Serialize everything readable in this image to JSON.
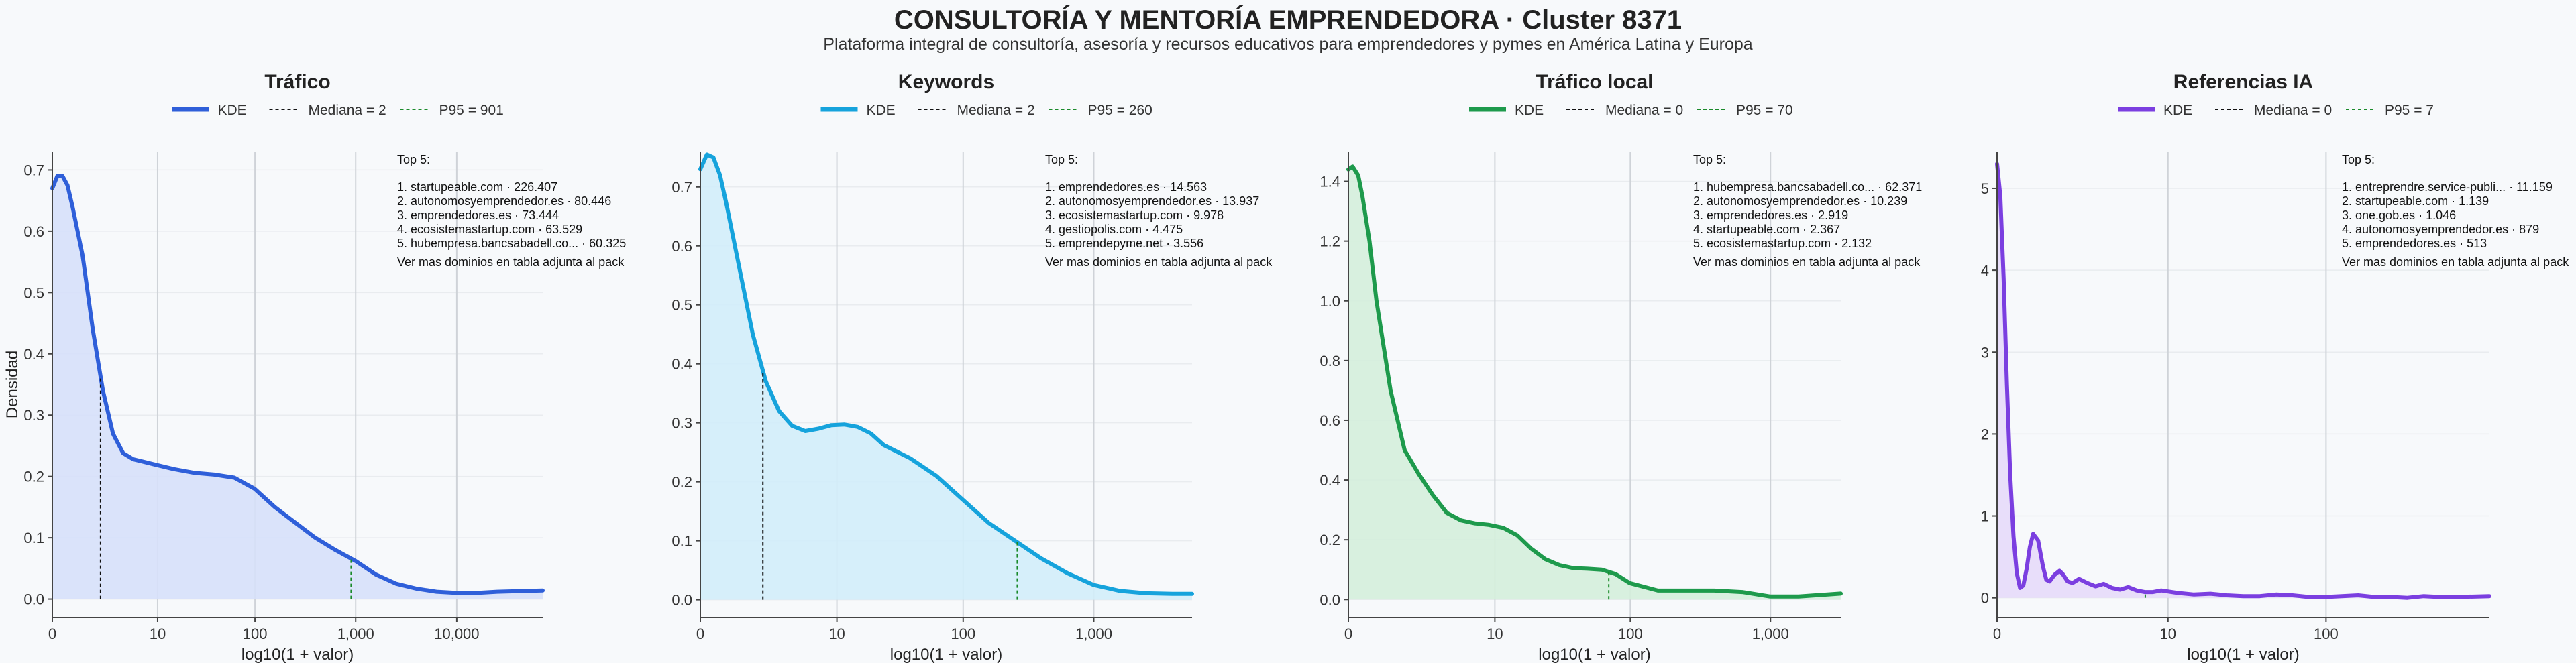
{
  "header": {
    "title": "CONSULTORÍA Y MENTORÍA EMPRENDEDORA · Cluster 8371",
    "subtitle": "Plataforma integral de consultoría, asesoría y recursos educativos para emprendedores y pymes en América Latina y Europa"
  },
  "chart_data": [
    {
      "type": "area",
      "title": "Tráfico",
      "color": "#2f5fd9",
      "fill": "#d6e0fa",
      "xlabel": "log10(1 + valor)",
      "ylabel": "Densidad",
      "x_scale": "log1p",
      "xlim": [
        0,
        4.85
      ],
      "ylim": [
        -0.03,
        0.73
      ],
      "xticks": [
        {
          "v": 0,
          "label": "0"
        },
        {
          "v": 10,
          "label": "10"
        },
        {
          "v": 100,
          "label": "100"
        },
        {
          "v": 1000,
          "label": "1,000"
        },
        {
          "v": 10000,
          "label": "10,000"
        }
      ],
      "yticks": [
        "0.0",
        "0.1",
        "0.2",
        "0.3",
        "0.4",
        "0.5",
        "0.6",
        "0.7"
      ],
      "ytick_values": [
        0,
        0.1,
        0.2,
        0.3,
        0.4,
        0.5,
        0.6,
        0.7
      ],
      "legend": {
        "kde": "KDE",
        "median": "Mediana = 2",
        "p95": "P95 = 901"
      },
      "median_x": 0.477,
      "p95_x": 2.955,
      "series": {
        "x": [
          0,
          0.05,
          0.1,
          0.15,
          0.2,
          0.3,
          0.4,
          0.5,
          0.6,
          0.7,
          0.8,
          0.9,
          1.0,
          1.2,
          1.4,
          1.6,
          1.8,
          2.0,
          2.2,
          2.4,
          2.6,
          2.8,
          3.0,
          3.2,
          3.4,
          3.6,
          3.8,
          4.0,
          4.2,
          4.4,
          4.6,
          4.85
        ],
        "y": [
          0.67,
          0.69,
          0.69,
          0.675,
          0.64,
          0.56,
          0.44,
          0.34,
          0.27,
          0.238,
          0.228,
          0.224,
          0.22,
          0.212,
          0.206,
          0.203,
          0.198,
          0.18,
          0.15,
          0.125,
          0.1,
          0.08,
          0.062,
          0.04,
          0.025,
          0.017,
          0.012,
          0.01,
          0.01,
          0.012,
          0.013,
          0.014
        ]
      },
      "annotation": {
        "heading": "Top 5:",
        "items": [
          "1. startupeable.com · 226.407",
          "2. autonomosyemprendedor.es · 80.446",
          "3. emprendedores.es · 73.444",
          "4. ecosistemastartup.com · 63.529",
          "5. hubempresa.bancsabadell.co... · 60.325"
        ],
        "footer": "Ver mas dominios en tabla adjunta al pack"
      }
    },
    {
      "type": "area",
      "title": "Keywords",
      "color": "#16a3dc",
      "fill": "#d2edf9",
      "xlabel": "log10(1 + valor)",
      "ylabel": "",
      "x_scale": "log1p",
      "xlim": [
        0,
        3.75
      ],
      "ylim": [
        -0.03,
        0.76
      ],
      "xticks": [
        {
          "v": 0,
          "label": "0"
        },
        {
          "v": 10,
          "label": "10"
        },
        {
          "v": 100,
          "label": "100"
        },
        {
          "v": 1000,
          "label": "1,000"
        }
      ],
      "yticks": [
        "0.0",
        "0.1",
        "0.2",
        "0.3",
        "0.4",
        "0.5",
        "0.6",
        "0.7"
      ],
      "ytick_values": [
        0,
        0.1,
        0.2,
        0.3,
        0.4,
        0.5,
        0.6,
        0.7
      ],
      "legend": {
        "kde": "KDE",
        "median": "Mediana = 2",
        "p95": "P95 = 260"
      },
      "median_x": 0.477,
      "p95_x": 2.417,
      "series": {
        "x": [
          0,
          0.05,
          0.1,
          0.15,
          0.2,
          0.3,
          0.4,
          0.5,
          0.6,
          0.7,
          0.8,
          0.9,
          1.0,
          1.1,
          1.2,
          1.3,
          1.4,
          1.6,
          1.8,
          2.0,
          2.2,
          2.4,
          2.6,
          2.8,
          3.0,
          3.2,
          3.4,
          3.6,
          3.75
        ],
        "y": [
          0.73,
          0.755,
          0.75,
          0.72,
          0.67,
          0.56,
          0.45,
          0.37,
          0.32,
          0.295,
          0.286,
          0.29,
          0.296,
          0.297,
          0.293,
          0.282,
          0.262,
          0.24,
          0.21,
          0.17,
          0.13,
          0.1,
          0.07,
          0.045,
          0.025,
          0.015,
          0.011,
          0.01,
          0.01
        ]
      },
      "annotation": {
        "heading": "Top 5:",
        "items": [
          "1. emprendedores.es · 14.563",
          "2. autonomosyemprendedor.es · 13.937",
          "3. ecosistemastartup.com · 9.978",
          "4. gestiopolis.com · 4.475",
          "5. emprendepyme.net · 3.556"
        ],
        "footer": "Ver mas dominios en tabla adjunta al pack"
      }
    },
    {
      "type": "area",
      "title": "Tráfico local",
      "color": "#1e9a4c",
      "fill": "#d4eedb",
      "xlabel": "log10(1 + valor)",
      "ylabel": "",
      "x_scale": "log1p",
      "xlim": [
        0,
        3.5
      ],
      "ylim": [
        -0.06,
        1.5
      ],
      "xticks": [
        {
          "v": 0,
          "label": "0"
        },
        {
          "v": 10,
          "label": "10"
        },
        {
          "v": 100,
          "label": "100"
        },
        {
          "v": 1000,
          "label": "1,000"
        }
      ],
      "yticks": [
        "0.0",
        "0.2",
        "0.4",
        "0.6",
        "0.8",
        "1.0",
        "1.2",
        "1.4"
      ],
      "ytick_values": [
        0,
        0.2,
        0.4,
        0.6,
        0.8,
        1.0,
        1.2,
        1.4
      ],
      "legend": {
        "kde": "KDE",
        "median": "Mediana = 0",
        "p95": "P95 = 70"
      },
      "median_x": 0,
      "p95_x": 1.851,
      "series": {
        "x": [
          0,
          0.03,
          0.07,
          0.1,
          0.15,
          0.2,
          0.3,
          0.4,
          0.5,
          0.6,
          0.7,
          0.8,
          0.9,
          1.0,
          1.1,
          1.2,
          1.3,
          1.4,
          1.5,
          1.6,
          1.7,
          1.8,
          1.9,
          2.0,
          2.2,
          2.4,
          2.6,
          2.8,
          3.0,
          3.2,
          3.5
        ],
        "y": [
          1.44,
          1.45,
          1.42,
          1.35,
          1.2,
          1.0,
          0.7,
          0.5,
          0.42,
          0.35,
          0.29,
          0.265,
          0.255,
          0.25,
          0.24,
          0.215,
          0.17,
          0.135,
          0.115,
          0.105,
          0.103,
          0.1,
          0.085,
          0.055,
          0.03,
          0.03,
          0.03,
          0.025,
          0.01,
          0.01,
          0.02
        ]
      },
      "annotation": {
        "heading": "Top 5:",
        "items": [
          "1. hubempresa.bancsabadell.co... · 62.371",
          "2. autonomosyemprendedor.es · 10.239",
          "3. emprendedores.es · 2.919",
          "4. startupeable.com · 2.367",
          "5. ecosistemastartup.com · 2.132"
        ],
        "footer": "Ver mas dominios en tabla adjunta al pack"
      }
    },
    {
      "type": "area",
      "title": "Referencias IA",
      "color": "#7b3fe0",
      "fill": "#e6dafa",
      "xlabel": "log10(1 + valor)",
      "ylabel": "",
      "x_scale": "log1p",
      "xlim": [
        0,
        3.0
      ],
      "ylim": [
        -0.24,
        5.45
      ],
      "xticks": [
        {
          "v": 0,
          "label": "0"
        },
        {
          "v": 10,
          "label": "10"
        },
        {
          "v": 100,
          "label": "100"
        }
      ],
      "yticks": [
        "0",
        "1",
        "2",
        "3",
        "4",
        "5"
      ],
      "ytick_values": [
        0,
        1,
        2,
        3,
        4,
        5
      ],
      "legend": {
        "kde": "KDE",
        "median": "Mediana = 0",
        "p95": "P95 = 7"
      },
      "median_x": 0,
      "p95_x": 0.903,
      "series": {
        "x": [
          0,
          0.02,
          0.04,
          0.06,
          0.08,
          0.1,
          0.12,
          0.14,
          0.16,
          0.18,
          0.2,
          0.22,
          0.25,
          0.28,
          0.3,
          0.32,
          0.35,
          0.38,
          0.4,
          0.43,
          0.46,
          0.5,
          0.55,
          0.6,
          0.65,
          0.7,
          0.75,
          0.8,
          0.85,
          0.9,
          0.95,
          1.0,
          1.1,
          1.2,
          1.3,
          1.4,
          1.5,
          1.6,
          1.7,
          1.8,
          1.9,
          2.0,
          2.1,
          2.2,
          2.3,
          2.4,
          2.5,
          2.6,
          2.7,
          2.8,
          3.0
        ],
        "y": [
          5.3,
          4.9,
          3.9,
          2.6,
          1.5,
          0.75,
          0.3,
          0.12,
          0.15,
          0.35,
          0.62,
          0.78,
          0.7,
          0.38,
          0.22,
          0.2,
          0.28,
          0.33,
          0.29,
          0.2,
          0.18,
          0.23,
          0.18,
          0.14,
          0.17,
          0.12,
          0.1,
          0.13,
          0.09,
          0.07,
          0.07,
          0.09,
          0.06,
          0.04,
          0.05,
          0.03,
          0.02,
          0.02,
          0.04,
          0.03,
          0.01,
          0.01,
          0.02,
          0.03,
          0.01,
          0.01,
          0.0,
          0.02,
          0.01,
          0.01,
          0.02
        ]
      },
      "annotation": {
        "heading": "Top 5:",
        "items": [
          "1. entreprendre.service-publi... · 11.159",
          "2. startupeable.com · 1.139",
          "3. one.gob.es · 1.046",
          "4. autonomosyemprendedor.es · 879",
          "5. emprendedores.es · 513"
        ],
        "footer": "Ver mas dominios en tabla adjunta al pack"
      }
    }
  ]
}
